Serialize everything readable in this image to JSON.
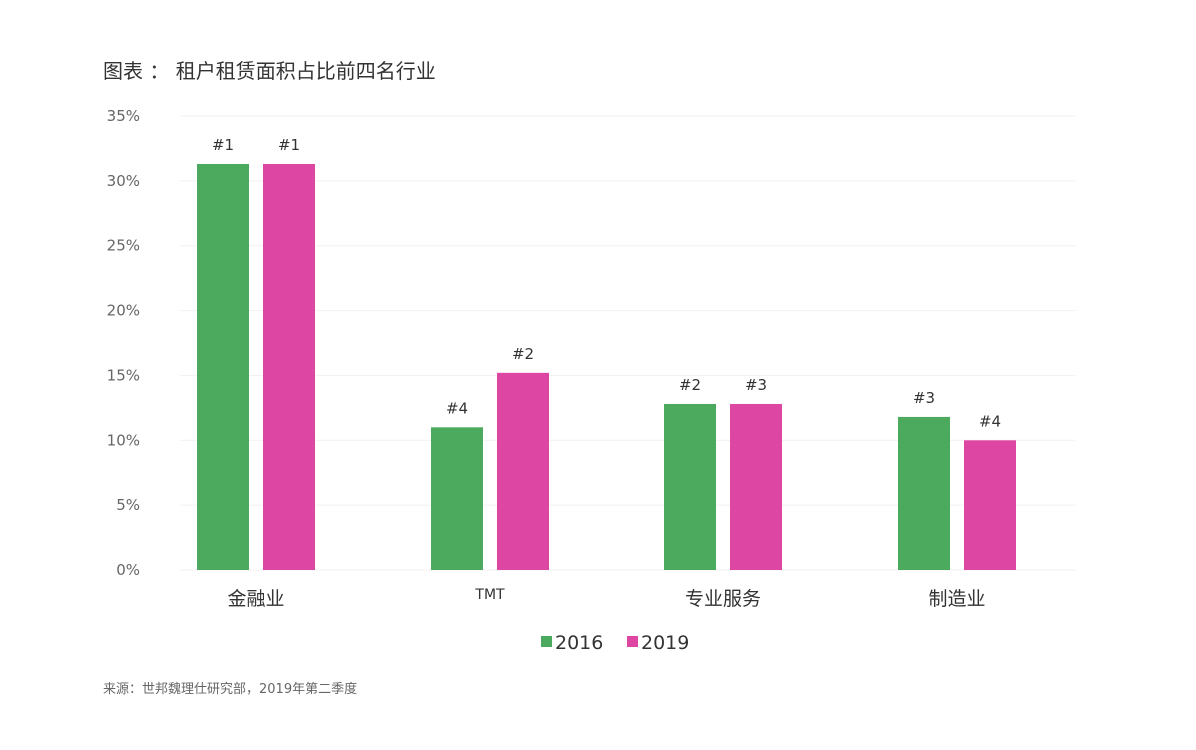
{
  "chart_data": {
    "type": "bar",
    "title": "图表 ： 租户租赁面积占比前四名行业",
    "categories": [
      "金融业",
      "TMT",
      "专业服务",
      "制造业"
    ],
    "series": [
      {
        "name": "2016",
        "color": "#4caa5f",
        "values": [
          31.3,
          11.0,
          12.8,
          11.8
        ],
        "labels": [
          "#1",
          "#4",
          "#2",
          "#3"
        ]
      },
      {
        "name": "2019",
        "color": "#de46a3",
        "values": [
          31.3,
          15.2,
          12.8,
          10.0
        ],
        "labels": [
          "#1",
          "#2",
          "#3",
          "#4"
        ]
      }
    ],
    "yticks": [
      "0%",
      "5%",
      "10%",
      "15%",
      "20%",
      "25%",
      "30%",
      "35%"
    ],
    "ylim": [
      0,
      35
    ],
    "grid": true,
    "legend": "bottom",
    "source": "来源：世邦魏理仕研究部，2019年第二季度"
  }
}
